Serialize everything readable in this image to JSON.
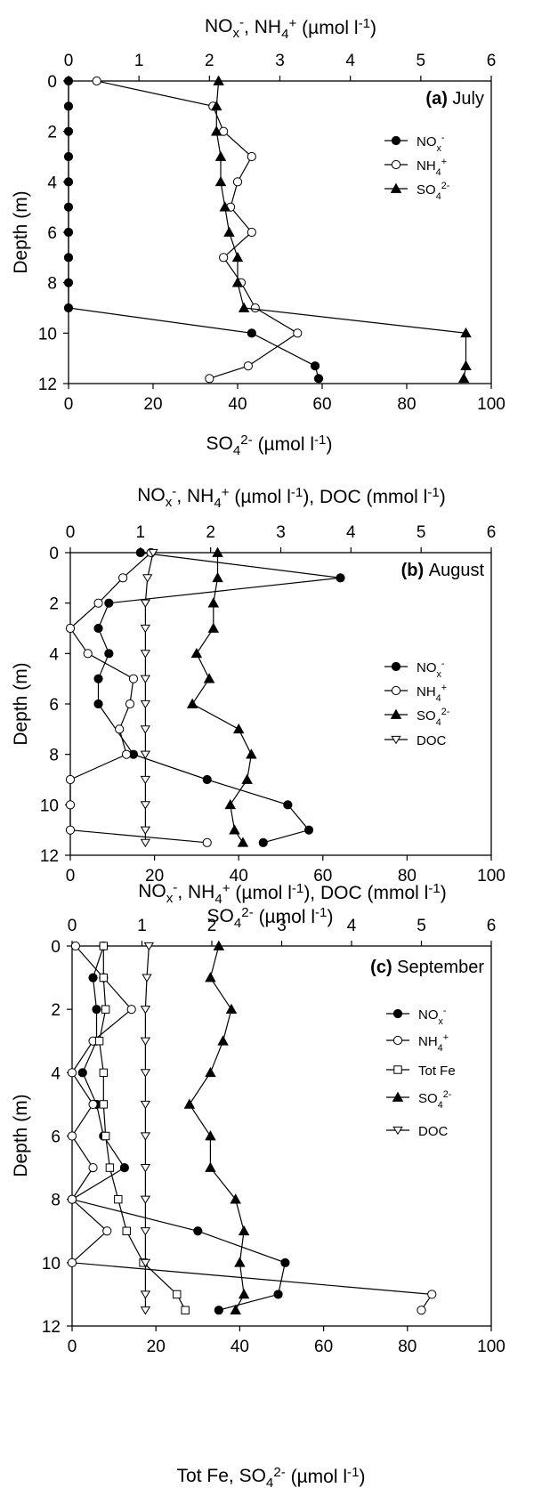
{
  "chart_data": [
    {
      "type": "line",
      "panel_label": "(a)",
      "panel_month": "July",
      "top_axis": {
        "title": "NOx-, NH4+ (µmol l-1)",
        "range": [
          0,
          6
        ],
        "ticks": [
          "0",
          "1",
          "2",
          "3",
          "4",
          "5",
          "6"
        ]
      },
      "bottom_axis": {
        "title": "SO42- (µmol l-1)",
        "range": [
          0,
          100
        ],
        "ticks": [
          "0",
          "20",
          "40",
          "60",
          "80",
          "100"
        ]
      },
      "y_axis": {
        "title": "Depth (m)",
        "range": [
          0,
          12
        ],
        "reversed": true,
        "ticks": [
          "0",
          "2",
          "4",
          "6",
          "8",
          "10",
          "12"
        ]
      },
      "series": [
        {
          "name": "NOx-",
          "marker": "filled-circle",
          "axis": "top",
          "x": [
            0,
            0,
            0,
            0,
            0,
            0,
            0,
            0,
            0,
            0,
            2.6,
            3.5,
            3.55
          ],
          "y": [
            0,
            1,
            2,
            3,
            4,
            5,
            6,
            7,
            8,
            9,
            10,
            11.3,
            11.8
          ]
        },
        {
          "name": "NH4+",
          "marker": "open-circle",
          "axis": "top",
          "x": [
            0.4,
            2.05,
            2.2,
            2.6,
            2.4,
            2.3,
            2.6,
            2.2,
            2.45,
            2.65,
            3.25,
            2.55,
            2.0
          ],
          "y": [
            0,
            1,
            2,
            3,
            4,
            5,
            6,
            7,
            8,
            9,
            10,
            11.3,
            11.8
          ]
        },
        {
          "name": "SO42-",
          "marker": "filled-triangle",
          "axis": "bottom",
          "x": [
            35.5,
            35,
            35,
            36,
            36,
            37,
            38,
            40,
            40,
            41.5,
            94,
            94,
            93.5
          ],
          "y": [
            0,
            1,
            2,
            3,
            4,
            5,
            6,
            7,
            8,
            9,
            10,
            11.3,
            11.8
          ]
        }
      ],
      "legend": [
        {
          "label": "NOx-",
          "series": 0
        },
        {
          "label": "NH4+",
          "series": 1
        },
        {
          "label": "SO42-",
          "series": 2
        }
      ]
    },
    {
      "type": "line",
      "panel_label": "(b)",
      "panel_month": "August",
      "top_axis": {
        "title": "NOx-, NH4+ (µmol l-1), DOC (mmol l-1)",
        "range": [
          0,
          6
        ],
        "ticks": [
          "0",
          "1",
          "2",
          "3",
          "4",
          "5",
          "6"
        ]
      },
      "bottom_axis": {
        "title": "SO42- (µmol l-1)",
        "range": [
          0,
          100
        ],
        "ticks": [
          "0",
          "20",
          "40",
          "60",
          "80",
          "100"
        ]
      },
      "y_axis": {
        "title": "Depth (m)",
        "range": [
          0,
          12
        ],
        "reversed": true,
        "ticks": [
          "0",
          "2",
          "4",
          "6",
          "8",
          "10",
          "12"
        ]
      },
      "series": [
        {
          "name": "NOx-",
          "marker": "filled-circle",
          "axis": "top",
          "x": [
            1.0,
            3.85,
            0.55,
            0.4,
            0.55,
            0.4,
            0.4,
            0.9,
            1.95,
            3.1,
            3.4,
            2.75
          ],
          "y": [
            0,
            1,
            2,
            3,
            4,
            5,
            6,
            8,
            9,
            10,
            11,
            11.5
          ]
        },
        {
          "name": "NH4+",
          "marker": "open-circle",
          "axis": "top",
          "x": [
            1.15,
            0.75,
            0.4,
            0,
            0.25,
            0.9,
            0.85,
            0.7,
            0.8,
            0,
            0,
            0,
            1.95
          ],
          "y": [
            0,
            1,
            2,
            3,
            4,
            5,
            6,
            7,
            8,
            9,
            10,
            11,
            11.5
          ]
        },
        {
          "name": "SO42-",
          "marker": "filled-triangle",
          "axis": "bottom",
          "x": [
            35,
            35,
            34,
            34,
            30,
            33,
            29,
            40,
            43,
            42,
            38,
            39,
            41
          ],
          "y": [
            0,
            1,
            2,
            3,
            4,
            5,
            6,
            7,
            8,
            9,
            10,
            11,
            11.5
          ]
        },
        {
          "name": "DOC",
          "marker": "open-triangle-down",
          "axis": "top",
          "x": [
            1.18,
            1.1,
            1.07,
            1.07,
            1.07,
            1.07,
            1.07,
            1.07,
            1.07,
            1.07,
            1.07,
            1.07,
            1.07
          ],
          "y": [
            0,
            1,
            2,
            3,
            4,
            5,
            6,
            7,
            8,
            9,
            10,
            11,
            11.5
          ]
        }
      ],
      "legend": [
        {
          "label": "NOx-",
          "series": 0
        },
        {
          "label": "NH4+",
          "series": 1
        },
        {
          "label": "SO42-",
          "series": 2
        },
        {
          "label": "DOC",
          "series": 3
        }
      ]
    },
    {
      "type": "line",
      "panel_label": "(c)",
      "panel_month": "September",
      "top_axis": {
        "title": "NOx-, NH4+ (µmol l-1), DOC (mmol l-1)",
        "range": [
          0,
          6
        ],
        "ticks": [
          "0",
          "1",
          "2",
          "3",
          "4",
          "5",
          "6"
        ]
      },
      "bottom_axis": {
        "title": "Tot Fe, SO42- (µmol l-1)",
        "range": [
          0,
          100
        ],
        "ticks": [
          "0",
          "20",
          "40",
          "60",
          "80",
          "100"
        ]
      },
      "y_axis": {
        "title": "Depth (m)",
        "range": [
          0,
          12
        ],
        "reversed": true,
        "ticks": [
          "0",
          "2",
          "4",
          "6",
          "8",
          "10",
          "12"
        ]
      },
      "series": [
        {
          "name": "NOx-",
          "marker": "filled-circle",
          "axis": "top",
          "x": [
            0.45,
            0.3,
            0.35,
            0.35,
            0.15,
            0.35,
            0.45,
            0.75,
            0,
            1.8,
            3.05,
            2.95,
            2.1
          ],
          "y": [
            0,
            1,
            2,
            3,
            4,
            5,
            6,
            7,
            8,
            9,
            10,
            11,
            11.5
          ]
        },
        {
          "name": "NH4+",
          "marker": "open-circle",
          "axis": "top",
          "x": [
            0.05,
            0.45,
            0.85,
            0.3,
            0,
            0.3,
            0,
            0.3,
            0,
            0.5,
            0,
            5.15,
            5.0
          ],
          "y": [
            0,
            1,
            2,
            3,
            4,
            5,
            6,
            7,
            8,
            9,
            10,
            11,
            11.5
          ]
        },
        {
          "name": "Tot Fe",
          "marker": "open-square",
          "axis": "bottom",
          "x": [
            7.5,
            7.5,
            8,
            6.5,
            7.5,
            7.5,
            8,
            9,
            11,
            13,
            17,
            25,
            27
          ],
          "y": [
            0,
            1,
            2,
            3,
            4,
            5,
            6,
            7,
            8,
            9,
            10,
            11,
            11.5
          ]
        },
        {
          "name": "SO42-",
          "marker": "filled-triangle",
          "axis": "bottom",
          "x": [
            35,
            33,
            38,
            36,
            33,
            28,
            33,
            33,
            39,
            41,
            40,
            41,
            39
          ],
          "y": [
            0,
            1,
            2,
            3,
            4,
            5,
            6,
            7,
            8,
            9,
            10,
            11,
            11.5
          ]
        },
        {
          "name": "DOC",
          "marker": "open-triangle-down",
          "axis": "top",
          "x": [
            1.1,
            1.07,
            1.05,
            1.05,
            1.05,
            1.05,
            1.05,
            1.05,
            1.05,
            1.05,
            1.05,
            1.05,
            1.05
          ],
          "y": [
            0,
            1,
            2,
            3,
            4,
            5,
            6,
            7,
            8,
            9,
            10,
            11,
            11.5
          ]
        }
      ],
      "legend": [
        {
          "label": "NOx-",
          "series": 0
        },
        {
          "label": "NH4+",
          "series": 1
        },
        {
          "label": "Tot Fe",
          "series": 2
        },
        {
          "label": "SO42-",
          "series": 3
        },
        {
          "label": "DOC",
          "series": 4
        }
      ]
    }
  ]
}
